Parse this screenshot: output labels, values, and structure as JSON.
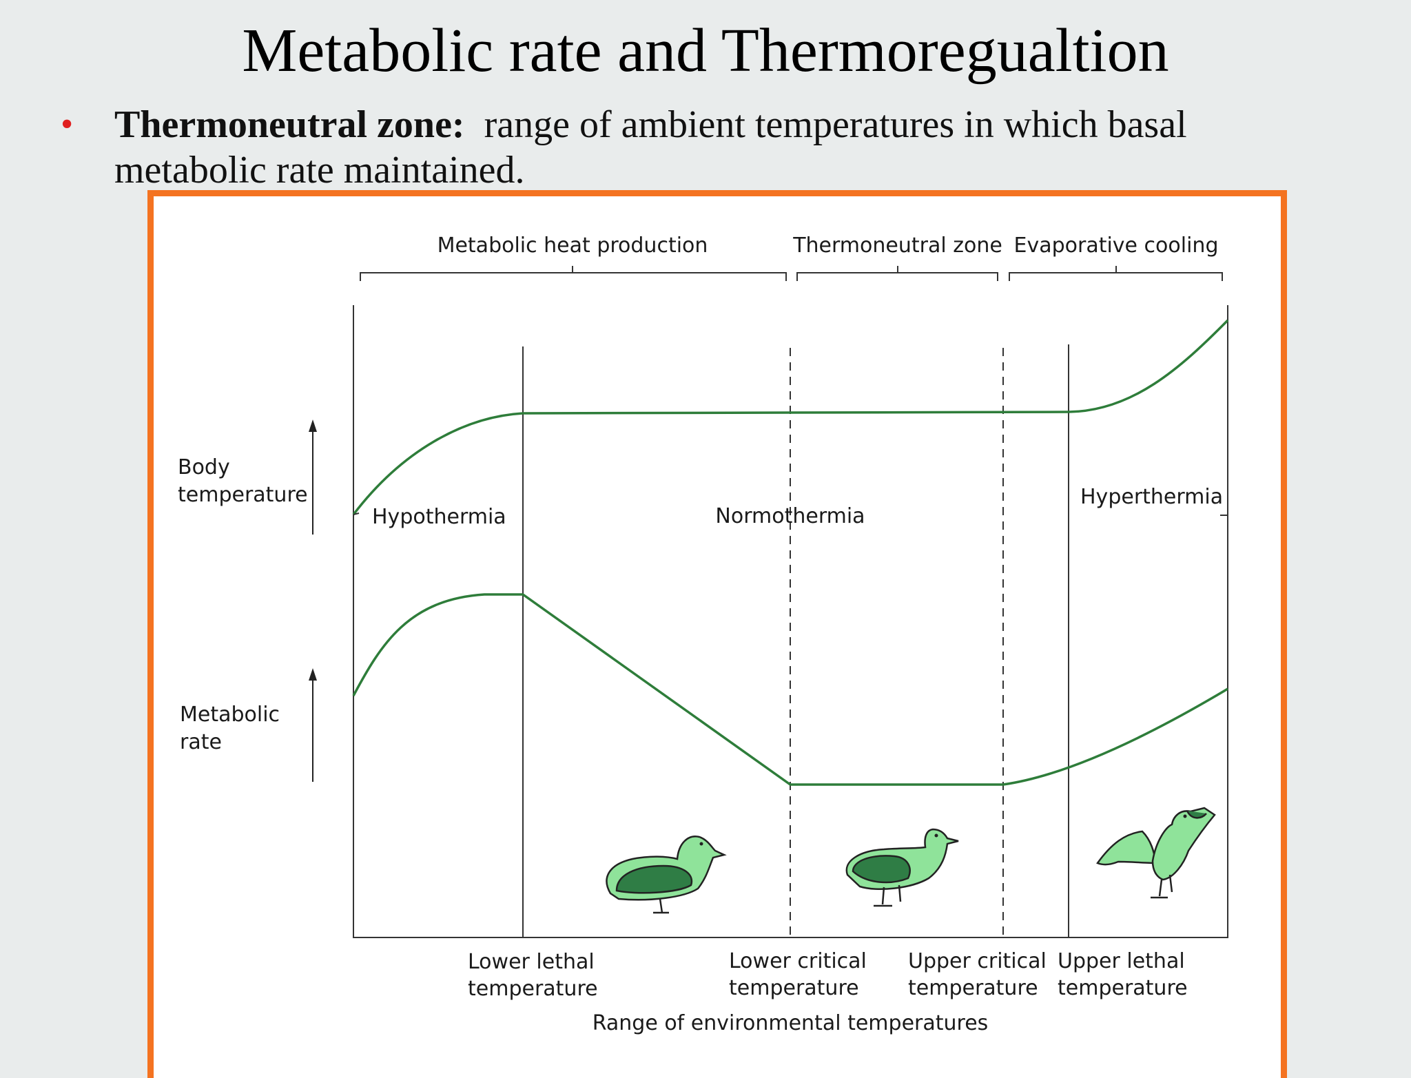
{
  "slide": {
    "title": "Metabolic rate and Thermoregualtion",
    "bullet": {
      "term": "Thermoneutral zone:",
      "text": "range of ambient temperatures in which basal metabolic rate maintained."
    }
  },
  "diagram": {
    "brackets": [
      "Metabolic heat production",
      "Thermoneutral zone",
      "Evaporative cooling"
    ],
    "y_labels": {
      "body_temperature": [
        "Body",
        "temperature"
      ],
      "metabolic_rate": [
        "Metabolic",
        "rate"
      ]
    },
    "states": [
      "Hypothermia",
      "Normothermia",
      "Hyperthermia"
    ],
    "thresholds": [
      [
        "Lower lethal",
        "temperature"
      ],
      [
        "Lower critical",
        "temperature"
      ],
      [
        "Upper critical",
        "temperature"
      ],
      [
        "Upper lethal",
        "temperature"
      ]
    ],
    "x_label": "Range of environmental temperatures",
    "colors": {
      "curve": "#2e7d3a",
      "frame": "#f47321",
      "bird_light": "#8fe39a",
      "bird_dark": "#2f7d45"
    }
  }
}
